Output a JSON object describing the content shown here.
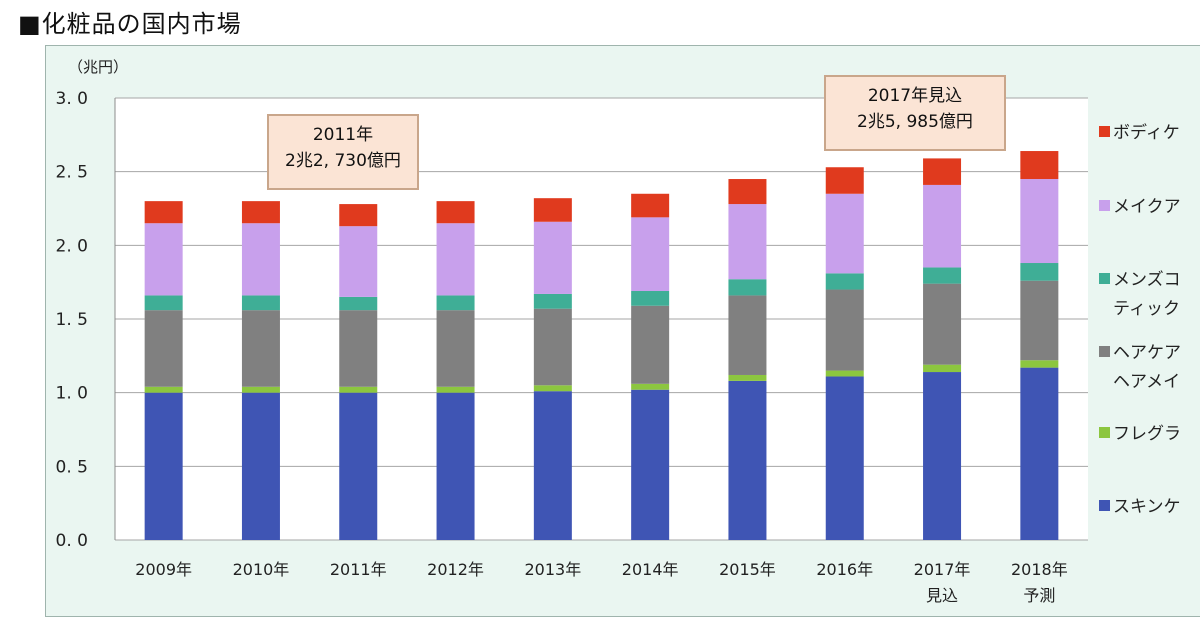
{
  "title": "■化粧品の国内市場",
  "chart_data": {
    "type": "bar",
    "stacked": true,
    "unit_label": "（兆円）",
    "ylim": [
      0,
      3.0
    ],
    "yticks": [
      "0. 0",
      "0. 5",
      "1. 0",
      "1. 5",
      "2. 0",
      "2. 5",
      "3. 0"
    ],
    "grid": true,
    "categories": [
      [
        "2009年"
      ],
      [
        "2010年"
      ],
      [
        "2011年"
      ],
      [
        "2012年"
      ],
      [
        "2013年"
      ],
      [
        "2014年"
      ],
      [
        "2015年"
      ],
      [
        "2016年"
      ],
      [
        "2017年",
        "見込"
      ],
      [
        "2018年",
        "予測"
      ]
    ],
    "series": [
      {
        "name": "スキンケア",
        "color": "#3f55b4",
        "values": [
          1.0,
          1.0,
          1.0,
          1.0,
          1.01,
          1.02,
          1.08,
          1.11,
          1.14,
          1.17
        ]
      },
      {
        "name": "フレグランス",
        "color": "#8cc63f",
        "values": [
          0.04,
          0.04,
          0.04,
          0.04,
          0.04,
          0.04,
          0.04,
          0.04,
          0.05,
          0.05
        ]
      },
      {
        "name": "ヘアケア・ヘアメイク",
        "color": "#808080",
        "values": [
          0.52,
          0.52,
          0.52,
          0.52,
          0.52,
          0.53,
          0.54,
          0.55,
          0.55,
          0.54
        ]
      },
      {
        "name": "メンズコスメティック",
        "color": "#3fae96",
        "values": [
          0.1,
          0.1,
          0.09,
          0.1,
          0.1,
          0.1,
          0.11,
          0.11,
          0.11,
          0.12
        ]
      },
      {
        "name": "メイクアップ",
        "color": "#c8a0ec",
        "values": [
          0.49,
          0.49,
          0.48,
          0.49,
          0.49,
          0.5,
          0.51,
          0.54,
          0.56,
          0.57
        ]
      },
      {
        "name": "ボディケア",
        "color": "#e03a1e",
        "values": [
          0.15,
          0.15,
          0.15,
          0.15,
          0.16,
          0.16,
          0.17,
          0.18,
          0.18,
          0.19
        ]
      }
    ],
    "legend": [
      {
        "lines": [
          "ボディケ"
        ],
        "color": "#e03a1e"
      },
      {
        "lines": [
          "メイクア"
        ],
        "color": "#c8a0ec"
      },
      {
        "lines": [
          "メンズコ",
          "ティック"
        ],
        "color": "#3fae96"
      },
      {
        "lines": [
          "ヘアケア",
          "ヘアメイ"
        ],
        "color": "#808080"
      },
      {
        "lines": [
          "フレグラ"
        ],
        "color": "#8cc63f"
      },
      {
        "lines": [
          "スキンケ"
        ],
        "color": "#3f55b4"
      }
    ],
    "annotations": [
      {
        "lines": [
          "2011年",
          "2兆2, 730億円"
        ]
      },
      {
        "lines": [
          "2017年見込",
          "2兆5, 985億円"
        ]
      }
    ]
  }
}
